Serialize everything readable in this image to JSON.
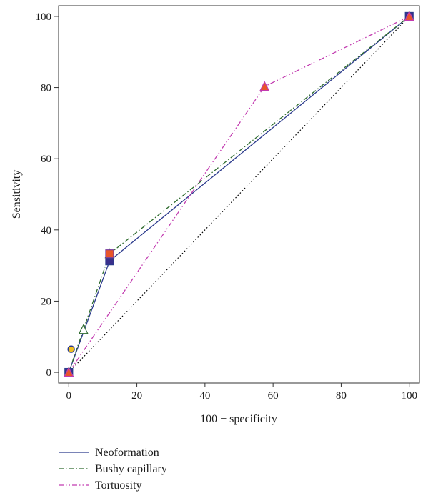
{
  "chart_data": {
    "type": "line",
    "xlabel": "100 − specificity",
    "ylabel": "Sensitivity",
    "xlim": [
      -3,
      103
    ],
    "ylim": [
      -3,
      103
    ],
    "x_ticks": [
      0,
      20,
      40,
      60,
      80,
      100
    ],
    "y_ticks": [
      0,
      20,
      40,
      60,
      80,
      100
    ],
    "grid": false,
    "legend_position": "bottom-left",
    "reference_line": {
      "x": [
        0,
        100
      ],
      "y": [
        0,
        100
      ],
      "color": "#000000",
      "style": "dotted"
    },
    "series": [
      {
        "name": "Neoformation",
        "color": "#2b3a8c",
        "style": "solid",
        "marker": "square",
        "marker_fill": "#3a2f8c",
        "x": [
          0,
          12,
          100
        ],
        "y": [
          0,
          31.3,
          100
        ]
      },
      {
        "name": "Bushy capillary",
        "color": "#2e6b2e",
        "style": "dash-dot",
        "marker": "triangle-open",
        "marker_fill": "#ffffff",
        "x": [
          0,
          4.3,
          12,
          100
        ],
        "y": [
          0,
          12,
          33.3,
          100
        ]
      },
      {
        "name": "Tortuosity",
        "color": "#c23bb0",
        "style": "dash-dot-dot",
        "marker": "triangle",
        "marker_fill": "#e8552a",
        "x": [
          0,
          57.5,
          100
        ],
        "y": [
          0,
          80.3,
          100
        ]
      }
    ],
    "extra_points": [
      {
        "x": 0.7,
        "y": 6.5,
        "marker": "circle",
        "fill": "#f0c020",
        "stroke": "#2b3a8c"
      },
      {
        "x": 12,
        "y": 33.3,
        "marker": "square",
        "fill": "#e8552a",
        "stroke": "#7a3fa0"
      }
    ]
  }
}
